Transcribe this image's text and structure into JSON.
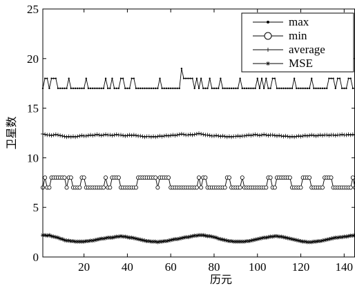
{
  "chart_data": {
    "type": "line",
    "title": "",
    "xlabel": "历元",
    "ylabel": "卫星数",
    "xlim": [
      1,
      145
    ],
    "ylim": [
      0,
      25
    ],
    "xticks": [
      20,
      40,
      60,
      80,
      100,
      120,
      140
    ],
    "yticks": [
      0,
      5,
      10,
      15,
      20,
      25
    ],
    "grid": false,
    "legend_position": "top-right",
    "series": [
      {
        "name": "max",
        "marker": "dot",
        "segments": [
          [
            1,
            17
          ],
          [
            2,
            18
          ],
          [
            3,
            18
          ],
          [
            4,
            17
          ],
          [
            5,
            18
          ],
          [
            6,
            18
          ],
          [
            7,
            18
          ],
          [
            8,
            17
          ],
          [
            9,
            17
          ],
          [
            10,
            17
          ],
          [
            12,
            17
          ],
          [
            13,
            18
          ],
          [
            14,
            17
          ],
          [
            20,
            17
          ],
          [
            21,
            18
          ],
          [
            22,
            17
          ],
          [
            29,
            17
          ],
          [
            30,
            18
          ],
          [
            31,
            17
          ],
          [
            32,
            17
          ],
          [
            33,
            18
          ],
          [
            34,
            17
          ],
          [
            36,
            17
          ],
          [
            37,
            18
          ],
          [
            38,
            18
          ],
          [
            39,
            17
          ],
          [
            41,
            17
          ],
          [
            42,
            18
          ],
          [
            43,
            18
          ],
          [
            44,
            17
          ],
          [
            54,
            17
          ],
          [
            55,
            18
          ],
          [
            56,
            17
          ],
          [
            64,
            17
          ],
          [
            65,
            19
          ],
          [
            66,
            18
          ],
          [
            67,
            18
          ],
          [
            68,
            18
          ],
          [
            69,
            18
          ],
          [
            70,
            18
          ],
          [
            71,
            17
          ],
          [
            72,
            18
          ],
          [
            73,
            17
          ],
          [
            74,
            18
          ],
          [
            75,
            17
          ],
          [
            77,
            17
          ],
          [
            78,
            18
          ],
          [
            79,
            17
          ],
          [
            82,
            17
          ],
          [
            83,
            18
          ],
          [
            84,
            17
          ],
          [
            91,
            17
          ],
          [
            92,
            18
          ],
          [
            93,
            17
          ],
          [
            99,
            17
          ],
          [
            100,
            18
          ],
          [
            101,
            17
          ],
          [
            102,
            18
          ],
          [
            103,
            17
          ],
          [
            104,
            18
          ],
          [
            105,
            17
          ],
          [
            106,
            17
          ],
          [
            107,
            18
          ],
          [
            108,
            18
          ],
          [
            109,
            17
          ],
          [
            116,
            17
          ],
          [
            117,
            18
          ],
          [
            118,
            17
          ],
          [
            124,
            17
          ],
          [
            125,
            18
          ],
          [
            126,
            17
          ],
          [
            132,
            17
          ],
          [
            133,
            18
          ],
          [
            134,
            18
          ],
          [
            135,
            18
          ],
          [
            136,
            17
          ],
          [
            137,
            18
          ],
          [
            138,
            18
          ],
          [
            139,
            17
          ],
          [
            141,
            17
          ],
          [
            142,
            18
          ],
          [
            143,
            18
          ],
          [
            144,
            17
          ],
          [
            145,
            17
          ]
        ]
      },
      {
        "name": "min",
        "marker": "circle",
        "values": [
          7,
          8,
          7,
          7,
          8,
          8,
          8,
          8,
          8,
          8,
          8,
          7,
          8,
          8,
          7,
          7,
          7,
          7,
          8,
          8,
          7,
          7,
          7,
          7,
          7,
          7,
          7,
          7,
          7,
          8,
          7,
          7,
          8,
          8,
          8,
          8,
          7,
          7,
          7,
          7,
          7,
          7,
          7,
          7,
          8,
          8,
          8,
          8,
          8,
          8,
          8,
          8,
          8,
          7,
          8,
          8,
          8,
          8,
          8,
          7,
          7,
          7,
          7,
          7,
          7,
          7,
          7,
          7,
          7,
          7,
          7,
          7,
          8,
          7,
          8,
          8,
          7,
          7,
          7,
          7,
          7,
          7,
          7,
          7,
          7,
          8,
          8,
          7,
          7,
          7,
          7,
          7,
          8,
          7,
          7,
          7,
          7,
          7,
          7,
          7,
          7,
          7,
          7,
          7,
          8,
          8,
          7,
          7,
          8,
          8,
          8,
          8,
          8,
          8,
          8,
          7,
          7,
          7,
          7,
          7,
          8,
          8,
          8,
          8,
          7,
          7,
          7,
          7,
          7,
          7,
          8,
          8,
          8,
          8,
          7,
          7,
          7,
          7,
          7,
          7,
          7,
          7,
          7,
          8,
          7
        ]
      },
      {
        "name": "average",
        "marker": "plus",
        "values": [
          12.4,
          12.35,
          12.3,
          12.3,
          12.25,
          12.3,
          12.35,
          12.3,
          12.25,
          12.2,
          12.15,
          12.1,
          12.15,
          12.1,
          12.15,
          12.1,
          12.15,
          12.2,
          12.25,
          12.2,
          12.2,
          12.25,
          12.3,
          12.25,
          12.3,
          12.35,
          12.3,
          12.25,
          12.3,
          12.35,
          12.3,
          12.3,
          12.25,
          12.3,
          12.35,
          12.3,
          12.3,
          12.25,
          12.2,
          12.25,
          12.3,
          12.25,
          12.3,
          12.25,
          12.2,
          12.2,
          12.15,
          12.1,
          12.15,
          12.15,
          12.1,
          12.15,
          12.1,
          12.15,
          12.2,
          12.15,
          12.2,
          12.25,
          12.2,
          12.25,
          12.3,
          12.25,
          12.3,
          12.35,
          12.4,
          12.35,
          12.3,
          12.3,
          12.35,
          12.3,
          12.35,
          12.4,
          12.45,
          12.4,
          12.35,
          12.3,
          12.3,
          12.25,
          12.2,
          12.2,
          12.25,
          12.2,
          12.15,
          12.2,
          12.15,
          12.1,
          12.15,
          12.1,
          12.15,
          12.15,
          12.2,
          12.15,
          12.2,
          12.2,
          12.25,
          12.3,
          12.25,
          12.3,
          12.35,
          12.3,
          12.25,
          12.3,
          12.35,
          12.3,
          12.25,
          12.3,
          12.3,
          12.25,
          12.2,
          12.25,
          12.2,
          12.15,
          12.2,
          12.15,
          12.1,
          12.15,
          12.1,
          12.15,
          12.2,
          12.15,
          12.2,
          12.25,
          12.2,
          12.25,
          12.3,
          12.25,
          12.2,
          12.25,
          12.3,
          12.25,
          12.3,
          12.3,
          12.25,
          12.3,
          12.3,
          12.25,
          12.3,
          12.3,
          12.35,
          12.3,
          12.3,
          12.35,
          12.3,
          12.35,
          12.3
        ]
      },
      {
        "name": "MSE",
        "marker": "star",
        "values": [
          2.2,
          2.2,
          2.15,
          2.2,
          2.1,
          2.05,
          2,
          1.95,
          1.85,
          1.8,
          1.7,
          1.65,
          1.65,
          1.6,
          1.6,
          1.55,
          1.55,
          1.55,
          1.55,
          1.55,
          1.6,
          1.6,
          1.65,
          1.65,
          1.7,
          1.75,
          1.8,
          1.85,
          1.85,
          1.9,
          1.95,
          1.95,
          1.95,
          2,
          2.05,
          2.05,
          2.1,
          2.05,
          2.05,
          2,
          1.95,
          1.95,
          1.9,
          1.85,
          1.8,
          1.75,
          1.7,
          1.65,
          1.6,
          1.6,
          1.55,
          1.55,
          1.55,
          1.5,
          1.55,
          1.55,
          1.6,
          1.6,
          1.65,
          1.7,
          1.75,
          1.8,
          1.8,
          1.85,
          1.9,
          1.95,
          2,
          2,
          2.05,
          2.1,
          2.15,
          2.15,
          2.2,
          2.2,
          2.2,
          2.15,
          2.1,
          2.1,
          2.05,
          2,
          1.95,
          1.85,
          1.8,
          1.75,
          1.7,
          1.65,
          1.6,
          1.6,
          1.55,
          1.55,
          1.55,
          1.55,
          1.55,
          1.55,
          1.6,
          1.6,
          1.65,
          1.7,
          1.75,
          1.8,
          1.85,
          1.9,
          1.95,
          1.95,
          2,
          2.05,
          2.05,
          2.1,
          2.1,
          2.05,
          2.05,
          2,
          1.95,
          1.9,
          1.85,
          1.8,
          1.75,
          1.7,
          1.65,
          1.6,
          1.55,
          1.55,
          1.5,
          1.5,
          1.5,
          1.55,
          1.55,
          1.6,
          1.6,
          1.65,
          1.7,
          1.75,
          1.8,
          1.85,
          1.9,
          1.95,
          1.95,
          2,
          2,
          2.05,
          2.05,
          2.1,
          2.15,
          2.15,
          2.2
        ]
      }
    ]
  }
}
